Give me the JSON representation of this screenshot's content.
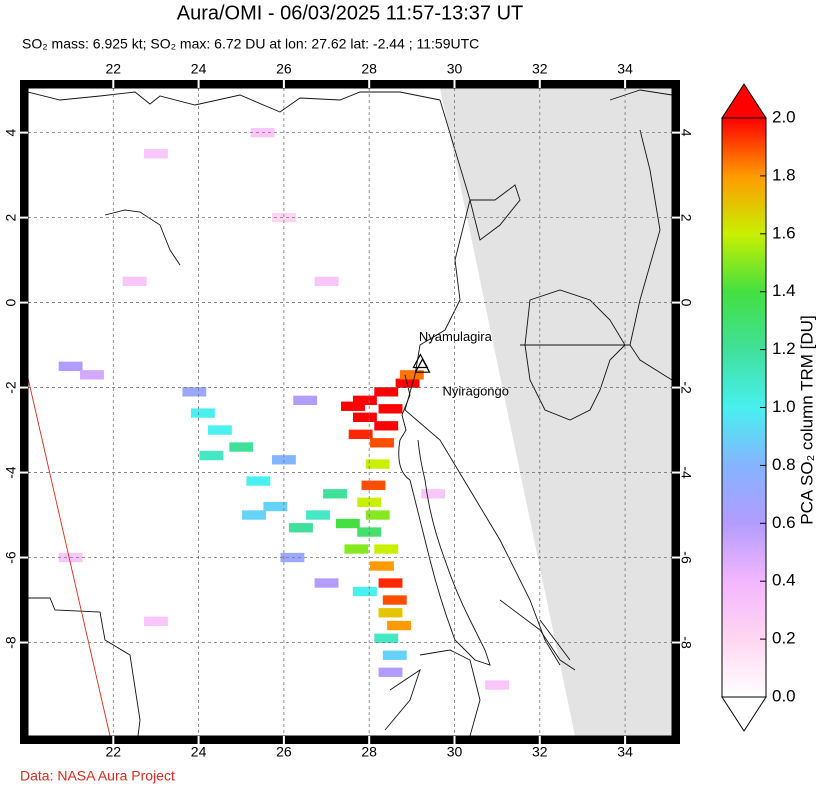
{
  "header": {
    "title": "Aura/OMI - 06/03/2025 11:57-13:37 UT",
    "subtitle": "SO₂ mass: 6.925 kt; SO₂ max: 6.72 DU at lon: 27.62 lat: -2.44 ; 11:59UTC"
  },
  "map": {
    "xlim": [
      20,
      35.1
    ],
    "ylim": [
      -10.2,
      5.05
    ],
    "xticks": [
      22,
      24,
      26,
      28,
      30,
      32,
      34
    ],
    "yticks": [
      4,
      2,
      0,
      -2,
      -4,
      -6,
      -8
    ],
    "grid": true,
    "plume": {
      "lon": [
        28.9,
        28.4,
        27.9,
        28.5,
        27.9,
        28.4,
        27.8,
        28.3,
        29.0,
        27.62,
        28.2,
        28.1,
        28.0,
        28.2,
        28.0,
        28.4,
        28.3,
        28.5,
        28.6,
        28.5,
        28.7,
        28.4,
        28.6,
        28.5,
        27.5,
        27.7,
        27.9,
        27.2,
        26.8,
        26.4,
        25.8,
        25.4,
        25.0,
        24.5,
        24.1,
        23.9,
        24.3,
        26.0,
        26.5,
        25.3,
        26.2,
        27.0,
        21.0,
        21.5,
        22.5,
        23.0,
        25.5,
        21.0,
        23.0,
        27.0,
        26.0,
        29.5,
        31.0
      ],
      "lat": [
        -1.9,
        -2.1,
        -2.3,
        -2.5,
        -2.7,
        -2.9,
        -3.1,
        -3.3,
        -1.7,
        -2.44,
        -3.8,
        -4.3,
        -4.7,
        -5.0,
        -5.4,
        -5.8,
        -6.2,
        -6.6,
        -7.0,
        -7.3,
        -7.6,
        -7.9,
        -8.3,
        -8.7,
        -5.2,
        -5.8,
        -6.8,
        -4.5,
        -5.0,
        -5.3,
        -4.8,
        -4.2,
        -3.4,
        -3.0,
        -2.6,
        -2.1,
        -3.6,
        -3.7,
        -2.3,
        -5.0,
        -6.0,
        -6.6,
        -1.5,
        -1.7,
        0.5,
        3.5,
        4.0,
        -6.0,
        -7.5,
        0.5,
        2.0,
        -4.5,
        -9.0
      ],
      "values": [
        2.0,
        2.0,
        2.0,
        2.0,
        2.0,
        2.0,
        1.95,
        1.9,
        1.85,
        6.72,
        1.6,
        1.9,
        1.6,
        1.5,
        1.3,
        1.6,
        1.8,
        1.95,
        1.9,
        1.7,
        1.8,
        1.1,
        0.9,
        0.6,
        1.4,
        1.5,
        1.0,
        1.2,
        1.1,
        1.2,
        0.9,
        1.0,
        1.2,
        1.0,
        1.0,
        0.7,
        1.1,
        0.8,
        0.6,
        0.9,
        0.7,
        0.6,
        0.6,
        0.5,
        0.3,
        0.3,
        0.3,
        0.3,
        0.3,
        0.3,
        0.2,
        0.3,
        0.3
      ]
    },
    "volcanoes": [
      {
        "name": "Nyamulagira",
        "lon": 29.2,
        "lat": -1.41
      },
      {
        "name": "Nyiragongo",
        "lon": 29.25,
        "lat": -1.52
      }
    ]
  },
  "colorbar": {
    "label": "PCA SO₂ column TRM [DU]",
    "lim": [
      0,
      2
    ],
    "ticks": [
      {
        "value": 0,
        "label": "0.0"
      },
      {
        "value": 0.2,
        "label": "0.2"
      },
      {
        "value": 0.4,
        "label": "0.4"
      },
      {
        "value": 0.6,
        "label": "0.6"
      },
      {
        "value": 0.8,
        "label": "0.8"
      },
      {
        "value": 1,
        "label": "1.0"
      },
      {
        "value": 1.2,
        "label": "1.2"
      },
      {
        "value": 1.4,
        "label": "1.4"
      },
      {
        "value": 1.6,
        "label": "1.6"
      },
      {
        "value": 1.8,
        "label": "1.8"
      },
      {
        "value": 2,
        "label": "2.0"
      }
    ],
    "colors": [
      "#ffffff",
      "#ffd6f2",
      "#f3b6ff",
      "#b39cff",
      "#84b4ff",
      "#48f0f0",
      "#40e09a",
      "#44e040",
      "#c8f000",
      "#ff9a00",
      "#ff0000"
    ]
  },
  "footer": "Data: NASA Aura Project"
}
